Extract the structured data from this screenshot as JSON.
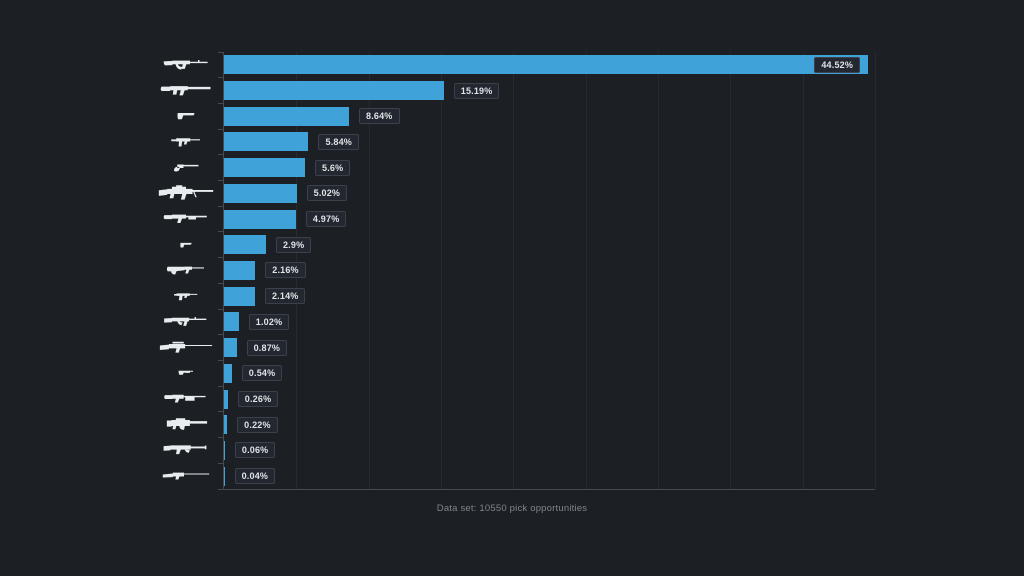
{
  "colors": {
    "background": "#1c2025",
    "bar": "#3fa2d9",
    "grid": "#262b31",
    "axis": "#434a52",
    "chip_bg": "#232830",
    "chip_border": "#3a414b",
    "chip_text": "#dfe3e6",
    "icon": "#e9ecee",
    "caption_text": "#7f858d"
  },
  "chart_data": {
    "type": "bar",
    "orientation": "horizontal",
    "title": "",
    "caption": "Data set: 10550 pick opportunities",
    "xlim": [
      0,
      45
    ],
    "grid_interval": 5,
    "grid": true,
    "legend": "none",
    "categories": [
      "assault-rifle",
      "suppressed-rifle",
      "pistol",
      "smg",
      "revolver",
      "sniper-rifle",
      "shotgun",
      "compact-pistol",
      "bullpup-rifle",
      "compact-smg",
      "battle-rifle",
      "scoped-rifle",
      "sawed-off-shotgun",
      "pump-shotgun",
      "lmg",
      "heavy-rifle",
      "long-rifle"
    ],
    "values": [
      44.52,
      15.19,
      8.64,
      5.84,
      5.6,
      5.02,
      4.97,
      2.9,
      2.16,
      2.14,
      1.02,
      0.87,
      0.54,
      0.26,
      0.22,
      0.06,
      0.04
    ],
    "labels": [
      "44.52%",
      "15.19%",
      "8.64%",
      "5.84%",
      "5.6%",
      "5.02%",
      "4.97%",
      "2.9%",
      "2.16%",
      "2.14%",
      "1.02%",
      "0.87%",
      "0.54%",
      "0.26%",
      "0.22%",
      "0.06%",
      "0.04%"
    ]
  }
}
